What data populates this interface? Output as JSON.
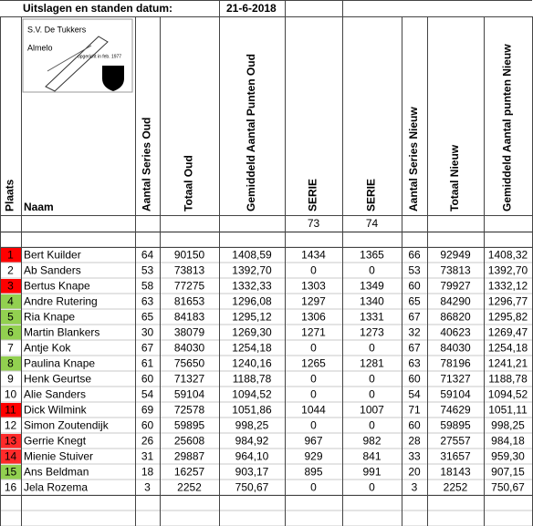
{
  "title": "Uitslagen en standen datum:",
  "date": "21-6-2018",
  "logo": {
    "club": "S.V. De Tukkers",
    "city": "Almelo",
    "founded": "opgericht in feb. 1977"
  },
  "headers": [
    "Plaats",
    "Naam",
    "Aantal Series Oud",
    "Totaal Oud",
    "Gemiddeld Aantal Punten Oud",
    "SERIE",
    "SERIE",
    "Aantal Series Nieuw",
    "Totaal Nieuw",
    "Gemiddeld Aantal punten Nieuw"
  ],
  "series_numbers": [
    "73",
    "74"
  ],
  "place_colors": [
    "#ff0000",
    null,
    "#ff0000",
    "#92d050",
    "#92d050",
    "#92d050",
    null,
    "#92d050",
    null,
    null,
    "#ff0000",
    null,
    "#ff2a2a",
    "#ff2a2a",
    "#92d050",
    null
  ],
  "rows": [
    [
      "1",
      "Bert Kuilder",
      "64",
      "90150",
      "1408,59",
      "1434",
      "1365",
      "66",
      "92949",
      "1408,32"
    ],
    [
      "2",
      "Ab Sanders",
      "53",
      "73813",
      "1392,70",
      "0",
      "0",
      "53",
      "73813",
      "1392,70"
    ],
    [
      "3",
      "Bertus Knape",
      "58",
      "77275",
      "1332,33",
      "1303",
      "1349",
      "60",
      "79927",
      "1332,12"
    ],
    [
      "4",
      "Andre Rutering",
      "63",
      "81653",
      "1296,08",
      "1297",
      "1340",
      "65",
      "84290",
      "1296,77"
    ],
    [
      "5",
      "Ria Knape",
      "65",
      "84183",
      "1295,12",
      "1306",
      "1331",
      "67",
      "86820",
      "1295,82"
    ],
    [
      "6",
      "Martin Blankers",
      "30",
      "38079",
      "1269,30",
      "1271",
      "1273",
      "32",
      "40623",
      "1269,47"
    ],
    [
      "7",
      "Antje Kok",
      "67",
      "84030",
      "1254,18",
      "0",
      "0",
      "67",
      "84030",
      "1254,18"
    ],
    [
      "8",
      "Paulina Knape",
      "61",
      "75650",
      "1240,16",
      "1265",
      "1281",
      "63",
      "78196",
      "1241,21"
    ],
    [
      "9",
      "Henk Geurtse",
      "60",
      "71327",
      "1188,78",
      "0",
      "0",
      "60",
      "71327",
      "1188,78"
    ],
    [
      "10",
      "Alie Sanders",
      "54",
      "59104",
      "1094,52",
      "0",
      "0",
      "54",
      "59104",
      "1094,52"
    ],
    [
      "11",
      "Dick Wilmink",
      "69",
      "72578",
      "1051,86",
      "1044",
      "1007",
      "71",
      "74629",
      "1051,11"
    ],
    [
      "12",
      "Simon Zoutendijk",
      "60",
      "59895",
      "998,25",
      "0",
      "0",
      "60",
      "59895",
      "998,25"
    ],
    [
      "13",
      "Gerrie Knegt",
      "26",
      "25608",
      "984,92",
      "967",
      "982",
      "28",
      "27557",
      "984,18"
    ],
    [
      "14",
      "Mienie Stuiver",
      "31",
      "29887",
      "964,10",
      "929",
      "841",
      "33",
      "31657",
      "959,30"
    ],
    [
      "15",
      "Ans Beldman",
      "18",
      "16257",
      "903,17",
      "895",
      "991",
      "20",
      "18143",
      "907,15"
    ],
    [
      "16",
      "Jela Rozema",
      "3",
      "2252",
      "750,67",
      "0",
      "0",
      "3",
      "2252",
      "750,67"
    ]
  ]
}
